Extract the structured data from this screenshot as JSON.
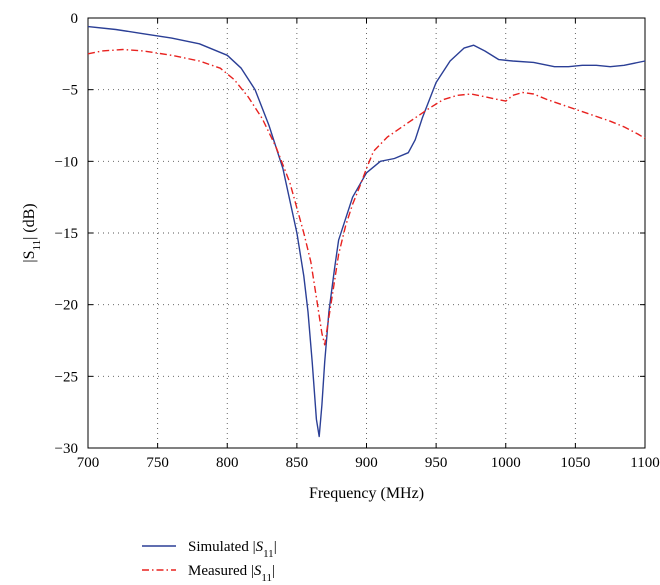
{
  "chart_data": {
    "type": "line",
    "xlabel": "Frequency (MHz)",
    "ylabel": "|S11| (dB)",
    "ylabel_parts": {
      "pre": "|S",
      "sub": "11",
      "post": "| (dB)"
    },
    "xlim": [
      700,
      1100
    ],
    "ylim": [
      -30,
      0
    ],
    "xticks": [
      700,
      750,
      800,
      850,
      900,
      950,
      1000,
      1050,
      1100
    ],
    "yticks": [
      0,
      -5,
      -10,
      -15,
      -20,
      -25,
      -30
    ],
    "ytick_labels": [
      "0",
      "−5",
      "−10",
      "−15",
      "−20",
      "−25",
      "−30"
    ],
    "grid": true,
    "legend_position": "bottom-left below plot",
    "series": [
      {
        "name": "Simulated |S11|",
        "legend_parts": {
          "pre": "Simulated |",
          "var": "S",
          "sub": "11",
          "post": "|"
        },
        "color": "#2b3f96",
        "style": "solid",
        "points": [
          [
            700,
            -0.6
          ],
          [
            720,
            -0.8
          ],
          [
            740,
            -1.1
          ],
          [
            760,
            -1.4
          ],
          [
            780,
            -1.8
          ],
          [
            800,
            -2.6
          ],
          [
            810,
            -3.5
          ],
          [
            820,
            -5.0
          ],
          [
            830,
            -7.5
          ],
          [
            840,
            -10.5
          ],
          [
            850,
            -15.0
          ],
          [
            855,
            -18.0
          ],
          [
            858,
            -20.5
          ],
          [
            861,
            -24.0
          ],
          [
            864,
            -28.0
          ],
          [
            866,
            -29.2
          ],
          [
            868,
            -27.0
          ],
          [
            870,
            -24.0
          ],
          [
            873,
            -20.5
          ],
          [
            877,
            -17.5
          ],
          [
            880,
            -15.5
          ],
          [
            890,
            -12.5
          ],
          [
            900,
            -10.8
          ],
          [
            910,
            -10.0
          ],
          [
            920,
            -9.8
          ],
          [
            930,
            -9.4
          ],
          [
            935,
            -8.5
          ],
          [
            940,
            -7.0
          ],
          [
            950,
            -4.5
          ],
          [
            960,
            -3.0
          ],
          [
            970,
            -2.1
          ],
          [
            977,
            -1.9
          ],
          [
            985,
            -2.3
          ],
          [
            995,
            -2.9
          ],
          [
            1005,
            -3.0
          ],
          [
            1020,
            -3.1
          ],
          [
            1035,
            -3.4
          ],
          [
            1045,
            -3.4
          ],
          [
            1055,
            -3.3
          ],
          [
            1065,
            -3.3
          ],
          [
            1075,
            -3.4
          ],
          [
            1085,
            -3.3
          ],
          [
            1100,
            -3.0
          ]
        ]
      },
      {
        "name": "Measured |S11|",
        "legend_parts": {
          "pre": "Measured |",
          "var": "S",
          "sub": "11",
          "post": "|"
        },
        "color": "#e8221f",
        "style": "dashdot",
        "points": [
          [
            700,
            -2.5
          ],
          [
            710,
            -2.3
          ],
          [
            725,
            -2.2
          ],
          [
            740,
            -2.3
          ],
          [
            760,
            -2.6
          ],
          [
            780,
            -3.0
          ],
          [
            795,
            -3.5
          ],
          [
            805,
            -4.3
          ],
          [
            815,
            -5.5
          ],
          [
            825,
            -7.0
          ],
          [
            835,
            -9.0
          ],
          [
            845,
            -11.5
          ],
          [
            855,
            -15.0
          ],
          [
            860,
            -17.0
          ],
          [
            864,
            -19.5
          ],
          [
            868,
            -22.0
          ],
          [
            870,
            -22.8
          ],
          [
            872,
            -21.5
          ],
          [
            876,
            -19.0
          ],
          [
            880,
            -16.5
          ],
          [
            885,
            -14.5
          ],
          [
            890,
            -13.0
          ],
          [
            895,
            -11.8
          ],
          [
            900,
            -10.5
          ],
          [
            905,
            -9.3
          ],
          [
            915,
            -8.3
          ],
          [
            930,
            -7.3
          ],
          [
            945,
            -6.3
          ],
          [
            955,
            -5.7
          ],
          [
            965,
            -5.4
          ],
          [
            975,
            -5.3
          ],
          [
            985,
            -5.5
          ],
          [
            995,
            -5.7
          ],
          [
            1000,
            -5.8
          ],
          [
            1005,
            -5.4
          ],
          [
            1012,
            -5.2
          ],
          [
            1020,
            -5.3
          ],
          [
            1030,
            -5.7
          ],
          [
            1045,
            -6.2
          ],
          [
            1060,
            -6.7
          ],
          [
            1075,
            -7.2
          ],
          [
            1085,
            -7.6
          ],
          [
            1095,
            -8.1
          ],
          [
            1100,
            -8.4
          ]
        ]
      }
    ]
  }
}
